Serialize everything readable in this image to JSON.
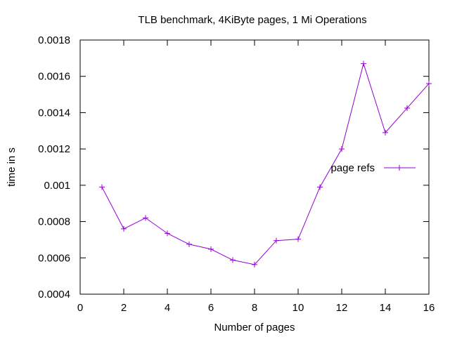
{
  "chart_data": {
    "type": "line",
    "title": "TLB benchmark, 4KiByte pages, 1 Mi Operations",
    "xlabel": "Number of pages",
    "ylabel": "time in s",
    "xlim": [
      0,
      16
    ],
    "ylim": [
      0.0004,
      0.0018
    ],
    "xticks": [
      0,
      2,
      4,
      6,
      8,
      10,
      12,
      14,
      16
    ],
    "yticks": [
      0.0004,
      0.0006,
      0.0008,
      0.001,
      0.0012,
      0.0014,
      0.0016,
      0.0018
    ],
    "xtick_labels": [
      "0",
      "2",
      "4",
      "6",
      "8",
      "10",
      "12",
      "14",
      "16"
    ],
    "ytick_labels": [
      "0.0004",
      "0.0006",
      "0.0008",
      "0.001",
      "0.0012",
      "0.0014",
      "0.0016",
      "0.0018"
    ],
    "grid": false,
    "legend_position": "right",
    "series": [
      {
        "name": "page refs",
        "color": "#9400d3",
        "marker": "plus",
        "x": [
          1,
          2,
          3,
          4,
          5,
          6,
          7,
          8,
          9,
          10,
          11,
          12,
          13,
          14,
          15,
          16
        ],
        "y": [
          0.00099,
          0.00076,
          0.00082,
          0.000735,
          0.000675,
          0.000648,
          0.000588,
          0.000563,
          0.000695,
          0.000703,
          0.00099,
          0.0012,
          0.00167,
          0.00129,
          0.001425,
          0.00156
        ]
      }
    ]
  }
}
